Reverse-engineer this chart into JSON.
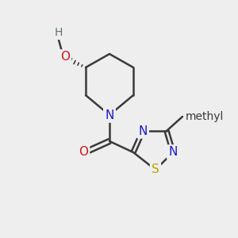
{
  "background_color": "#eeeeee",
  "bond_color": "#3a3a3a",
  "bond_width": 1.8,
  "atom_colors": {
    "N": "#1a1acc",
    "O": "#cc1a1a",
    "S": "#b8a800",
    "H": "#607070",
    "C": "#3a3a3a"
  },
  "font_size_atom": 11,
  "font_size_methyl": 10,
  "font_size_H": 10
}
